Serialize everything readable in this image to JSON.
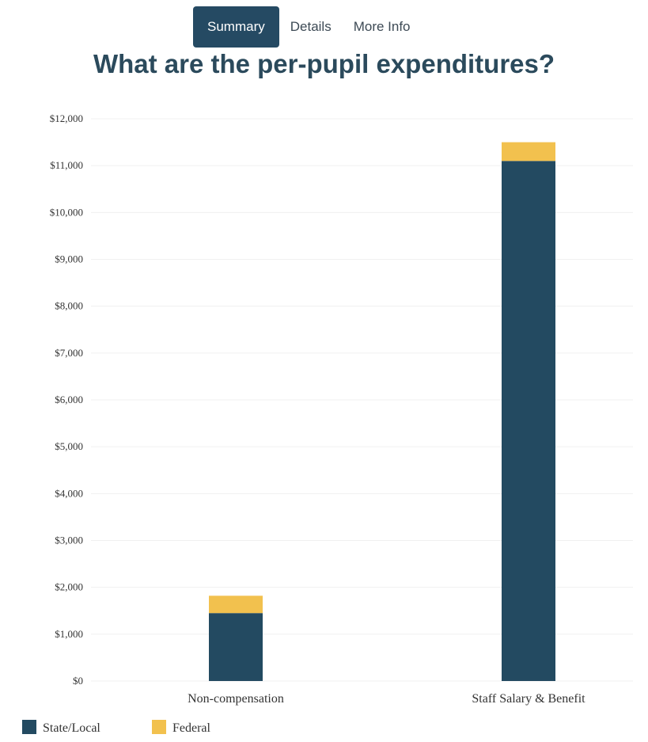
{
  "tabs": [
    {
      "label": "Summary",
      "active": true
    },
    {
      "label": "Details",
      "active": false
    },
    {
      "label": "More Info",
      "active": false
    }
  ],
  "colors": {
    "state_local": "#234a61",
    "federal": "#f2c14e",
    "tab_active_bg": "#254a63",
    "title": "#2b4a5c"
  },
  "chart_data": {
    "type": "bar",
    "stacked": true,
    "title": "What are the per-pupil expenditures?",
    "xlabel": "",
    "ylabel": "",
    "categories": [
      "Non-compensation",
      "Staff Salary & Benefit"
    ],
    "series": [
      {
        "name": "State/Local",
        "values": [
          1450,
          11100
        ],
        "color": "#234a61"
      },
      {
        "name": "Federal",
        "values": [
          370,
          400
        ],
        "color": "#f2c14e"
      }
    ],
    "ylim": [
      0,
      12000
    ],
    "y_ticks": [
      0,
      1000,
      2000,
      3000,
      4000,
      5000,
      6000,
      7000,
      8000,
      9000,
      10000,
      11000,
      12000
    ],
    "y_tick_labels": [
      "$0",
      "$1,000",
      "$2,000",
      "$3,000",
      "$4,000",
      "$5,000",
      "$6,000",
      "$7,000",
      "$8,000",
      "$9,000",
      "$10,000",
      "$11,000",
      "$12,000"
    ],
    "grid": true,
    "legend": "bottom-left"
  }
}
